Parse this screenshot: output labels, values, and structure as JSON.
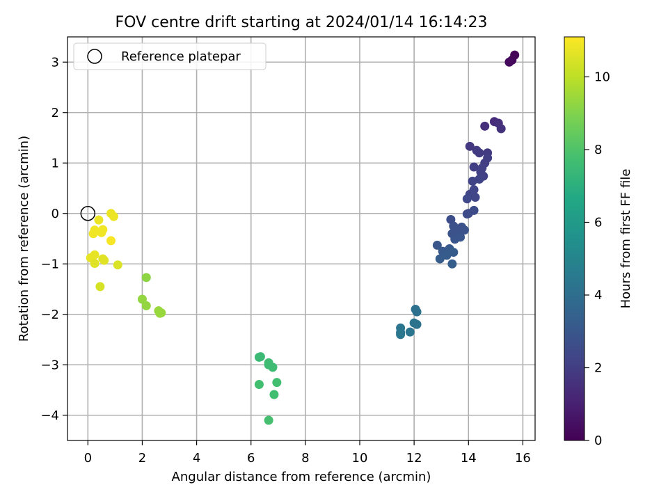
{
  "chart_data": {
    "type": "scatter",
    "title": "FOV centre drift starting at 2024/01/14 16:14:23",
    "xlabel": "Angular distance from reference (arcmin)",
    "ylabel": "Rotation from reference (arcmin)",
    "xlim": [
      -0.75,
      16.45
    ],
    "ylim": [
      -4.5,
      3.5
    ],
    "xticks": [
      0,
      2,
      4,
      6,
      8,
      10,
      12,
      14,
      16
    ],
    "yticks": [
      -4,
      -3,
      -2,
      -1,
      0,
      1,
      2,
      3
    ],
    "grid": true,
    "legend": {
      "label": "Reference platepar",
      "placement": "top-left"
    },
    "reference_point": {
      "x": 0,
      "y": 0
    },
    "colorbar": {
      "label": "Hours from first FF file",
      "range": [
        0,
        11.1
      ],
      "ticks": [
        0,
        2,
        4,
        6,
        8,
        10
      ],
      "colormap": "viridis"
    },
    "points": [
      {
        "x": 15.7,
        "y": 3.14,
        "h": 0.1
      },
      {
        "x": 15.6,
        "y": 3.04,
        "h": 0.2
      },
      {
        "x": 15.5,
        "y": 3.0,
        "h": 0.3
      },
      {
        "x": 14.95,
        "y": 1.82,
        "h": 1.4
      },
      {
        "x": 15.1,
        "y": 1.79,
        "h": 1.5
      },
      {
        "x": 15.2,
        "y": 1.68,
        "h": 1.6
      },
      {
        "x": 14.6,
        "y": 1.73,
        "h": 1.5
      },
      {
        "x": 14.05,
        "y": 1.33,
        "h": 1.8
      },
      {
        "x": 14.3,
        "y": 1.25,
        "h": 1.9
      },
      {
        "x": 14.4,
        "y": 1.2,
        "h": 1.9
      },
      {
        "x": 14.7,
        "y": 1.2,
        "h": 1.9
      },
      {
        "x": 14.7,
        "y": 1.1,
        "h": 2.0
      },
      {
        "x": 14.6,
        "y": 1.0,
        "h": 2.0
      },
      {
        "x": 14.2,
        "y": 0.92,
        "h": 2.0
      },
      {
        "x": 14.5,
        "y": 0.9,
        "h": 2.1
      },
      {
        "x": 14.45,
        "y": 0.82,
        "h": 2.1
      },
      {
        "x": 14.55,
        "y": 0.74,
        "h": 2.1
      },
      {
        "x": 14.4,
        "y": 0.68,
        "h": 2.2
      },
      {
        "x": 14.15,
        "y": 0.64,
        "h": 2.2
      },
      {
        "x": 14.2,
        "y": 0.47,
        "h": 2.3
      },
      {
        "x": 14.05,
        "y": 0.38,
        "h": 2.3
      },
      {
        "x": 14.25,
        "y": 0.32,
        "h": 2.3
      },
      {
        "x": 13.95,
        "y": 0.29,
        "h": 2.4
      },
      {
        "x": 14.0,
        "y": 0.0,
        "h": 2.4
      },
      {
        "x": 13.95,
        "y": -0.01,
        "h": 2.5
      },
      {
        "x": 14.2,
        "y": 0.06,
        "h": 2.5
      },
      {
        "x": 13.35,
        "y": -0.12,
        "h": 2.6
      },
      {
        "x": 13.45,
        "y": -0.25,
        "h": 2.7
      },
      {
        "x": 13.75,
        "y": -0.27,
        "h": 2.7
      },
      {
        "x": 13.6,
        "y": -0.34,
        "h": 2.8
      },
      {
        "x": 13.85,
        "y": -0.33,
        "h": 2.8
      },
      {
        "x": 13.4,
        "y": -0.4,
        "h": 2.8
      },
      {
        "x": 13.7,
        "y": -0.47,
        "h": 2.9
      },
      {
        "x": 13.5,
        "y": -0.51,
        "h": 2.9
      },
      {
        "x": 12.85,
        "y": -0.63,
        "h": 3.0
      },
      {
        "x": 13.05,
        "y": -0.75,
        "h": 3.1
      },
      {
        "x": 13.3,
        "y": -0.7,
        "h": 3.1
      },
      {
        "x": 13.45,
        "y": -0.77,
        "h": 3.2
      },
      {
        "x": 13.2,
        "y": -0.83,
        "h": 3.2
      },
      {
        "x": 12.95,
        "y": -0.9,
        "h": 3.2
      },
      {
        "x": 13.4,
        "y": -1.0,
        "h": 3.3
      },
      {
        "x": 12.05,
        "y": -1.9,
        "h": 4.1
      },
      {
        "x": 12.1,
        "y": -1.95,
        "h": 4.1
      },
      {
        "x": 12.0,
        "y": -2.17,
        "h": 4.2
      },
      {
        "x": 12.1,
        "y": -2.2,
        "h": 4.2
      },
      {
        "x": 11.5,
        "y": -2.27,
        "h": 4.3
      },
      {
        "x": 11.5,
        "y": -2.36,
        "h": 4.3
      },
      {
        "x": 11.85,
        "y": -2.35,
        "h": 4.3
      },
      {
        "x": 11.5,
        "y": -2.4,
        "h": 4.4
      },
      {
        "x": 6.3,
        "y": -2.85,
        "h": 7.5
      },
      {
        "x": 6.35,
        "y": -2.84,
        "h": 7.5
      },
      {
        "x": 6.65,
        "y": -2.96,
        "h": 7.6
      },
      {
        "x": 6.65,
        "y": -3.0,
        "h": 7.6
      },
      {
        "x": 6.8,
        "y": -3.05,
        "h": 7.6
      },
      {
        "x": 6.3,
        "y": -3.39,
        "h": 7.7
      },
      {
        "x": 6.95,
        "y": -3.35,
        "h": 7.7
      },
      {
        "x": 6.85,
        "y": -3.59,
        "h": 7.7
      },
      {
        "x": 6.65,
        "y": -4.1,
        "h": 7.8
      },
      {
        "x": 2.15,
        "y": -1.27,
        "h": 9.2
      },
      {
        "x": 2.0,
        "y": -1.7,
        "h": 9.3
      },
      {
        "x": 2.15,
        "y": -1.83,
        "h": 9.3
      },
      {
        "x": 2.6,
        "y": -1.93,
        "h": 9.4
      },
      {
        "x": 2.7,
        "y": -1.97,
        "h": 9.4
      },
      {
        "x": 2.65,
        "y": -1.98,
        "h": 9.4
      },
      {
        "x": 0.85,
        "y": 0.0,
        "h": 10.8
      },
      {
        "x": 0.95,
        "y": -0.06,
        "h": 10.8
      },
      {
        "x": 0.4,
        "y": -0.13,
        "h": 10.8
      },
      {
        "x": 0.25,
        "y": -0.33,
        "h": 10.9
      },
      {
        "x": 0.55,
        "y": -0.32,
        "h": 10.9
      },
      {
        "x": 0.2,
        "y": -0.4,
        "h": 10.9
      },
      {
        "x": 0.5,
        "y": -0.38,
        "h": 10.9
      },
      {
        "x": 0.85,
        "y": -0.54,
        "h": 11.0
      },
      {
        "x": 0.25,
        "y": -0.82,
        "h": 10.7
      },
      {
        "x": 0.1,
        "y": -0.88,
        "h": 10.7
      },
      {
        "x": 0.55,
        "y": -0.9,
        "h": 10.6
      },
      {
        "x": 0.6,
        "y": -0.93,
        "h": 10.6
      },
      {
        "x": 0.25,
        "y": -0.99,
        "h": 10.6
      },
      {
        "x": 1.1,
        "y": -1.02,
        "h": 10.5
      },
      {
        "x": 0.45,
        "y": -1.45,
        "h": 10.4
      }
    ]
  }
}
